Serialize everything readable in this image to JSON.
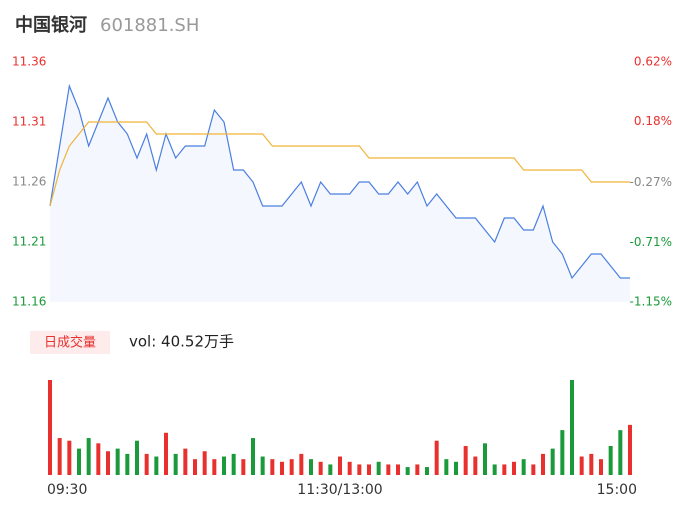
{
  "header": {
    "name": "中国银河",
    "code": "601881.SH"
  },
  "volume_button": "日成交量",
  "volume_text": "vol: 40.52万手",
  "chart_data": [
    {
      "type": "line",
      "x": [
        0,
        4,
        8,
        12,
        16,
        20,
        24,
        28,
        32,
        36,
        40,
        44,
        48,
        52,
        56,
        60,
        64,
        68,
        72,
        76,
        80,
        84,
        88,
        92,
        96,
        100,
        104,
        108,
        112,
        116,
        120,
        124,
        128,
        132,
        136,
        140,
        144,
        148,
        152,
        156,
        160,
        164,
        168,
        172,
        176,
        180,
        184,
        188,
        192,
        196,
        200,
        204,
        208,
        212,
        216,
        220,
        224,
        228,
        232,
        236,
        240
      ],
      "xlim": [
        0,
        240
      ],
      "xticks": [
        {
          "value": 0,
          "label": "09:30"
        },
        {
          "value": 120,
          "label": "11:30/13:00"
        },
        {
          "value": 240,
          "label": "15:00"
        }
      ],
      "ylim": [
        11.16,
        11.36
      ],
      "yticks": [
        {
          "value": 11.36,
          "label": "11.36"
        },
        {
          "value": 11.31,
          "label": "11.31"
        },
        {
          "value": 11.26,
          "label": "11.26"
        },
        {
          "value": 11.21,
          "label": "11.21"
        },
        {
          "value": 11.16,
          "label": "11.16"
        }
      ],
      "y2lim": [
        -1.15,
        0.62
      ],
      "y2ticks": [
        {
          "value": 0.62,
          "label": "0.62%"
        },
        {
          "value": 0.18,
          "label": "0.18%"
        },
        {
          "value": -0.27,
          "label": "-0.27%"
        },
        {
          "value": -0.71,
          "label": "-0.71%"
        },
        {
          "value": -1.15,
          "label": "-1.15%"
        }
      ],
      "tick_colors": [
        "#e8312f",
        "#e8312f",
        "#888888",
        "#1a9a3a",
        "#1a9a3a"
      ],
      "area_color": "#f4f7fd",
      "series": [
        {
          "color": "#4a7fe0",
          "values": [
            11.24,
            11.29,
            11.34,
            11.32,
            11.29,
            11.31,
            11.33,
            11.31,
            11.3,
            11.28,
            11.3,
            11.27,
            11.3,
            11.28,
            11.29,
            11.29,
            11.29,
            11.32,
            11.31,
            11.27,
            11.27,
            11.26,
            11.24,
            11.24,
            11.24,
            11.25,
            11.26,
            11.24,
            11.26,
            11.25,
            11.25,
            11.25,
            11.26,
            11.26,
            11.25,
            11.25,
            11.26,
            11.25,
            11.26,
            11.24,
            11.25,
            11.24,
            11.23,
            11.23,
            11.23,
            11.22,
            11.21,
            11.23,
            11.23,
            11.22,
            11.22,
            11.24,
            11.21,
            11.2,
            11.18,
            11.19,
            11.2,
            11.2,
            11.19,
            11.18,
            11.18
          ]
        },
        {
          "color": "#f0b43c",
          "values": [
            11.24,
            11.27,
            11.29,
            11.3,
            11.31,
            11.31,
            11.31,
            11.31,
            11.31,
            11.31,
            11.31,
            11.3,
            11.3,
            11.3,
            11.3,
            11.3,
            11.3,
            11.3,
            11.3,
            11.3,
            11.3,
            11.3,
            11.3,
            11.29,
            11.29,
            11.29,
            11.29,
            11.29,
            11.29,
            11.29,
            11.29,
            11.29,
            11.29,
            11.28,
            11.28,
            11.28,
            11.28,
            11.28,
            11.28,
            11.28,
            11.28,
            11.28,
            11.28,
            11.28,
            11.28,
            11.28,
            11.28,
            11.28,
            11.28,
            11.27,
            11.27,
            11.27,
            11.27,
            11.27,
            11.27,
            11.27,
            11.26,
            11.26,
            11.26,
            11.26,
            11.26
          ]
        }
      ]
    },
    {
      "type": "bar",
      "up_color": "#e8312f",
      "down_color": "#1a9a3a",
      "values": [
        18000,
        7000,
        6500,
        5000,
        7000,
        6000,
        4500,
        5000,
        4000,
        6500,
        4000,
        3500,
        8000,
        4000,
        5000,
        3000,
        4500,
        3000,
        3500,
        4000,
        3000,
        7000,
        3500,
        3000,
        2500,
        3000,
        4000,
        3000,
        2500,
        2000,
        3500,
        2500,
        2000,
        2000,
        2500,
        2000,
        2000,
        1500,
        2000,
        1500,
        6500,
        3000,
        2500,
        5500,
        3500,
        6000,
        2000,
        2000,
        2500,
        3000,
        2000,
        4000,
        5000,
        8500,
        18000,
        3500,
        4000,
        3000,
        5500,
        8500,
        9500
      ]
    }
  ]
}
